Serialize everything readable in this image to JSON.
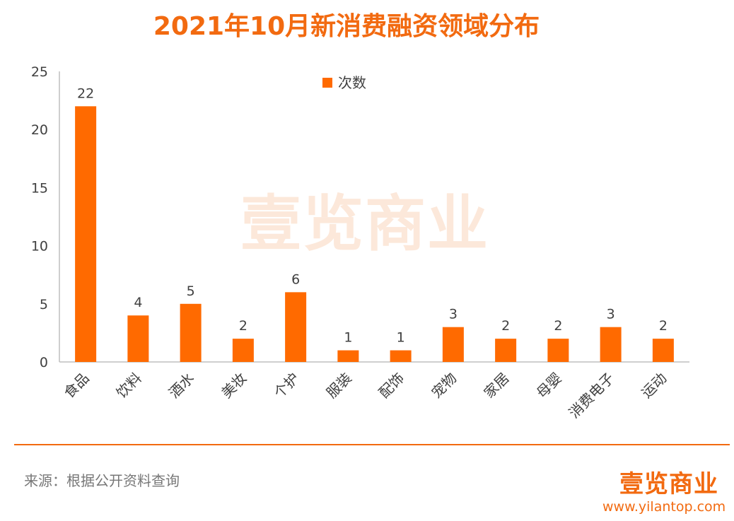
{
  "title": "2021年10月新消费融资领域分布",
  "source_text": "来源：根据公开资料查询",
  "logo_text": "壹览商业",
  "watermark_text": "壹览商业",
  "site_url": "www.yilantop.com",
  "colors": {
    "accent": "#f26a10",
    "bar": "#ff6a00",
    "axis": "#bfbfbf",
    "text": "#404040"
  },
  "chart_data": {
    "type": "bar",
    "categories": [
      "食品",
      "饮料",
      "酒水",
      "美妆",
      "个护",
      "服装",
      "配饰",
      "宠物",
      "家居",
      "母婴",
      "消费电子",
      "运动"
    ],
    "series": [
      {
        "name": "次数",
        "values": [
          22,
          4,
          5,
          2,
          6,
          1,
          1,
          3,
          2,
          2,
          3,
          2
        ]
      }
    ],
    "ylim": [
      0,
      25
    ],
    "yticks": [
      0,
      5,
      10,
      15,
      20,
      25
    ],
    "xlabel": "",
    "ylabel": "",
    "grid": false,
    "legend_position": "top-center",
    "data_labels": true
  }
}
